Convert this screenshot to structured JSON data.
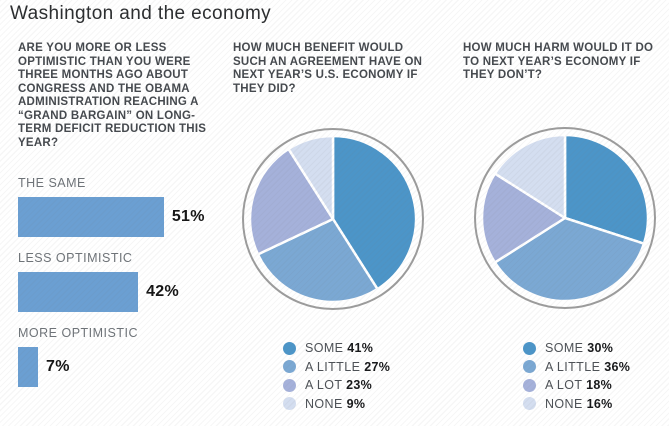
{
  "title": "Washington and the economy",
  "colors": {
    "bar_fill": "#6B9FD2",
    "pie_ring": "#9C9C9C",
    "pie_some": "#4C95C8",
    "pie_a_little": "#7BA8D3",
    "pie_a_lot": "#A5B1DA",
    "pie_none": "#D4DEF0",
    "question_text": "#45494E",
    "value_text": "#151515"
  },
  "chart_data": [
    {
      "type": "bar",
      "title": "ARE YOU MORE OR LESS OPTIMISTIC THAN YOU WERE THREE MONTHS AGO ABOUT CONGRESS AND THE OBAMA ADMINISTRATION REACHING A “GRAND BARGAIN” ON LONG-TERM DEFICIT REDUCTION THIS YEAR?",
      "categories": [
        "THE SAME",
        "LESS OPTIMISTIC",
        "MORE OPTIMISTIC"
      ],
      "values": [
        51,
        42,
        7
      ],
      "value_labels": [
        "51%",
        "42%",
        "7%"
      ],
      "xlim": [
        0,
        100
      ],
      "bar_color": "#6B9FD2",
      "orientation": "horizontal",
      "grid": false
    },
    {
      "type": "pie",
      "title": "HOW MUCH BENEFIT WOULD SUCH AN AGREEMENT HAVE ON NEXT YEAR’S U.S. ECONOMY IF THEY DID?",
      "labels": [
        "SOME",
        "A LITTLE",
        "A LOT",
        "NONE"
      ],
      "values": [
        41,
        27,
        23,
        9
      ],
      "value_labels": [
        "41%",
        "27%",
        "23%",
        "9%"
      ],
      "colors": [
        "#4C95C8",
        "#7BA8D3",
        "#A5B1DA",
        "#D4DEF0"
      ],
      "start_angle_deg": 0,
      "direction": "clockwise",
      "legend_position": "bottom"
    },
    {
      "type": "pie",
      "title": "HOW MUCH HARM WOULD IT DO TO NEXT YEAR’S ECONOMY IF THEY DON’T?",
      "labels": [
        "SOME",
        "A LITTLE",
        "A LOT",
        "NONE"
      ],
      "values": [
        30,
        36,
        18,
        16
      ],
      "value_labels": [
        "30%",
        "36%",
        "18%",
        "16%"
      ],
      "colors": [
        "#4C95C8",
        "#7BA8D3",
        "#A5B1DA",
        "#D4DEF0"
      ],
      "start_angle_deg": 0,
      "direction": "clockwise",
      "legend_position": "bottom"
    }
  ]
}
